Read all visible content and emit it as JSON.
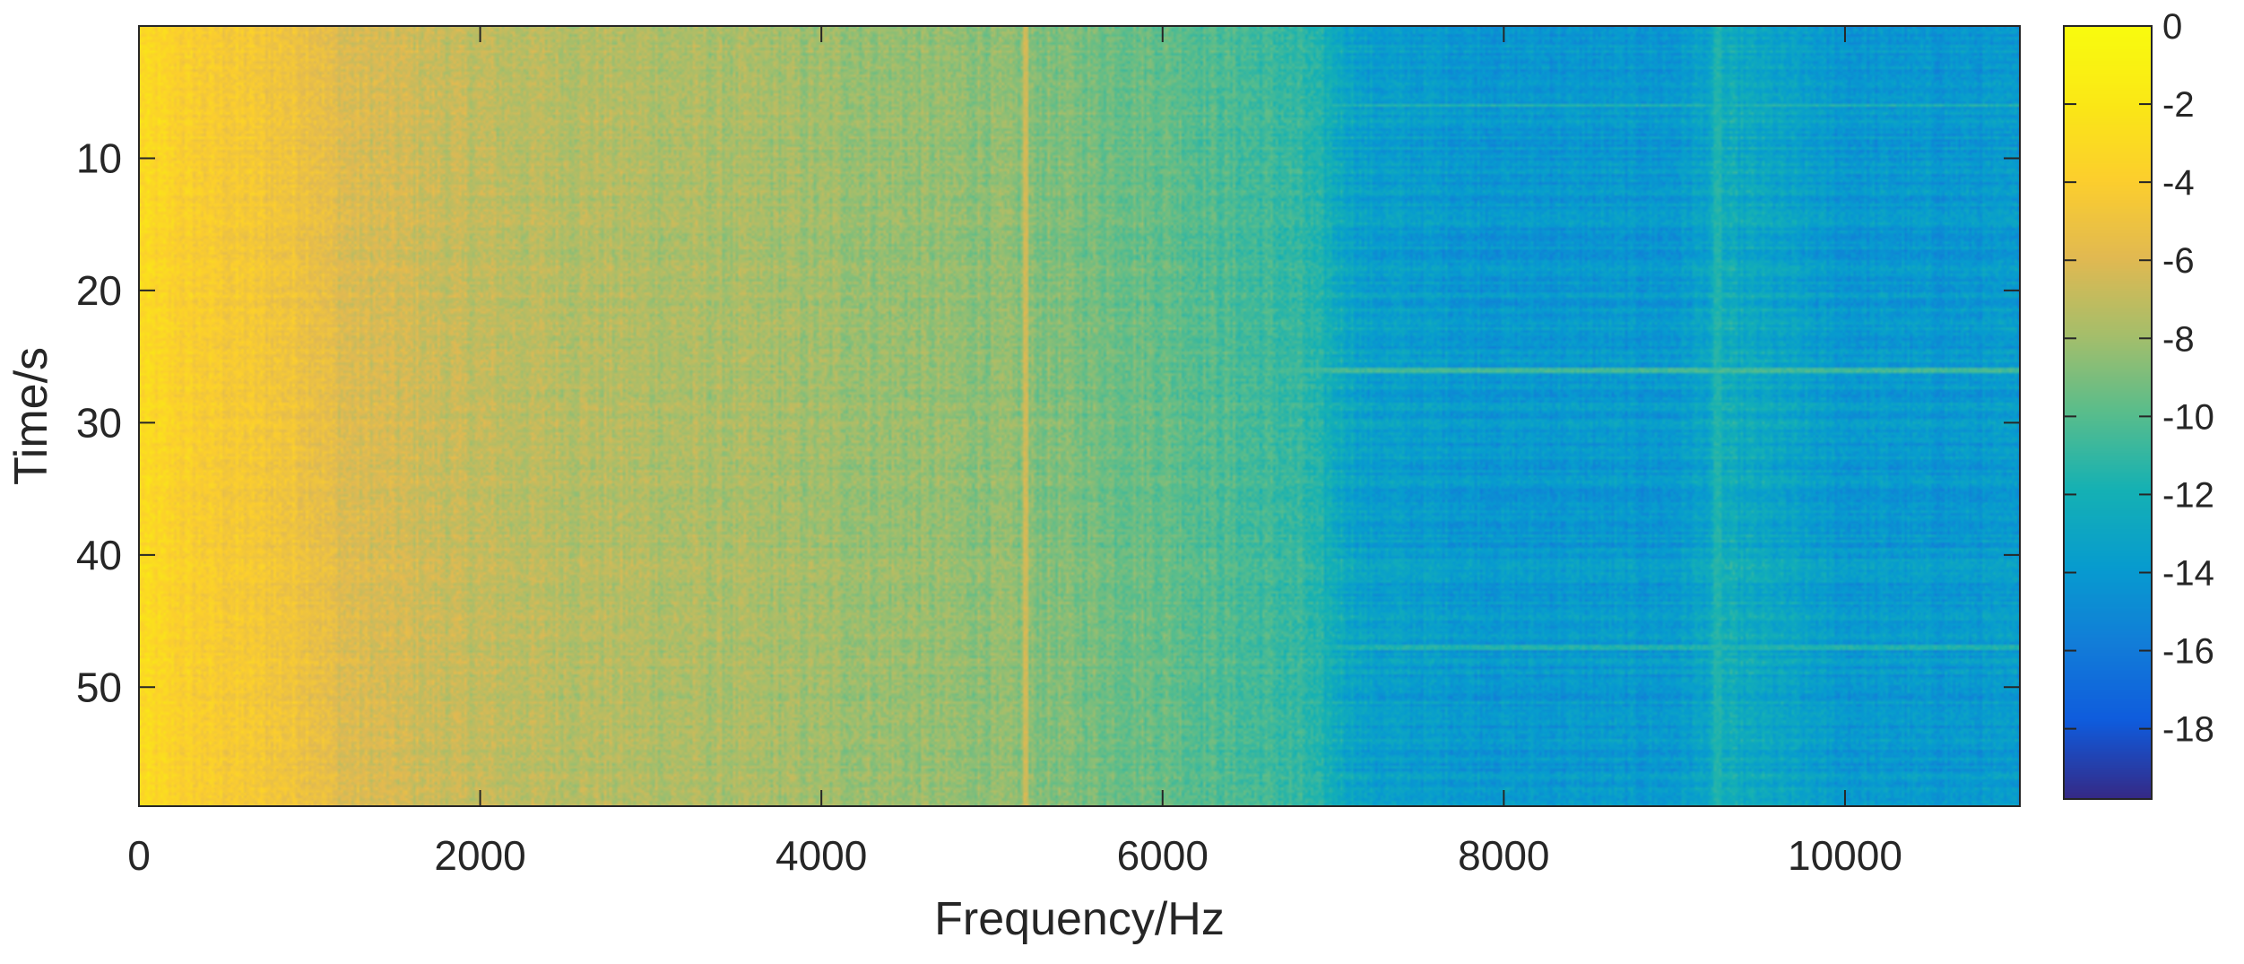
{
  "chart_data": {
    "type": "heatmap",
    "title": "",
    "xlabel": "Frequency/Hz",
    "ylabel": "Time/s",
    "xlim": [
      0,
      11025
    ],
    "ylim": [
      0,
      59
    ],
    "y_reversed": true,
    "x_ticks": [
      0,
      2000,
      4000,
      6000,
      8000,
      10000
    ],
    "x_tick_labels": [
      "0",
      "2000",
      "4000",
      "6000",
      "8000",
      "10000"
    ],
    "y_ticks": [
      10,
      20,
      30,
      40,
      50
    ],
    "y_tick_labels": [
      "10",
      "20",
      "30",
      "40",
      "50"
    ],
    "colormap": "parula",
    "colorbar": {
      "position": "right",
      "range": [
        -19.8,
        0
      ],
      "ticks": [
        0,
        -2,
        -4,
        -6,
        -8,
        -10,
        -12,
        -14,
        -16,
        -18
      ],
      "tick_labels": [
        "0",
        "-2",
        "-4",
        "-6",
        "-8",
        "-10",
        "-12",
        "-14",
        "-16",
        "-18"
      ]
    },
    "approx_profile_over_frequency": {
      "frequency_hz": [
        0,
        300,
        1000,
        1200,
        2000,
        3000,
        4000,
        5000,
        6000,
        6800,
        7200,
        8000,
        9000,
        9300,
        10000,
        11025
      ],
      "value": [
        -3.0,
        -4.0,
        -5.0,
        -6.0,
        -7.0,
        -7.5,
        -8.0,
        -8.5,
        -9.5,
        -11.0,
        -13.5,
        -14.0,
        -14.0,
        -12.5,
        -14.0,
        -14.0
      ]
    },
    "notable_features": [
      {
        "type": "vertical-line",
        "frequency_hz": 5200,
        "value": -6.5
      },
      {
        "type": "vertical-line",
        "frequency_hz": 9250,
        "value": -11.5
      },
      {
        "type": "horizontal-line",
        "time_s": 26,
        "value": -10.5
      },
      {
        "type": "horizontal-line",
        "time_s": 47,
        "value": -11.5
      },
      {
        "type": "horizontal-line",
        "time_s": 6,
        "value": -11.5
      }
    ],
    "grid": false
  }
}
